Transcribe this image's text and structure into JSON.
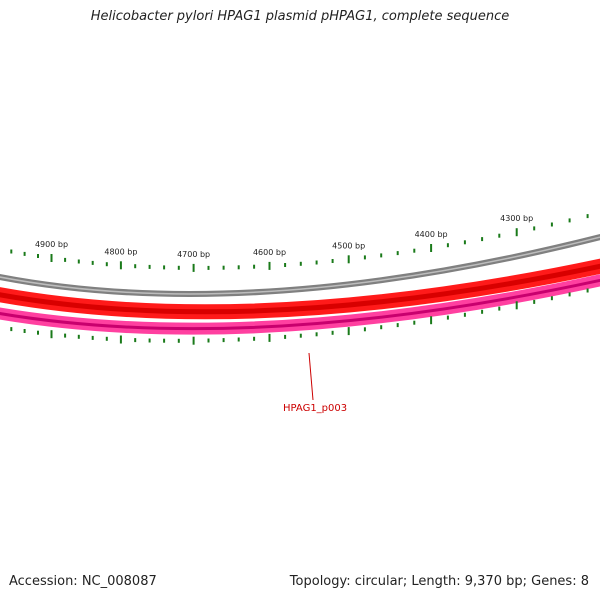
{
  "title": "Helicobacter pylori HPAG1 plasmid pHPAG1, complete sequence",
  "accession": "Accession: NC_008087",
  "summary": "Topology: circular; Length: 9,370 bp; Genes: 8",
  "plasmid": {
    "length_bp": 9370,
    "topology": "circular",
    "genes": 8
  },
  "scale": {
    "major_ticks": [
      {
        "position": 4300,
        "label": "4300 bp"
      },
      {
        "position": 4400,
        "label": "4400 bp"
      },
      {
        "position": 4500,
        "label": "4500 bp"
      },
      {
        "position": 4600,
        "label": "4600 bp"
      },
      {
        "position": 4700,
        "label": "4700 bp"
      },
      {
        "position": 4800,
        "label": "4800 bp"
      },
      {
        "position": 4900,
        "label": "4900 bp"
      }
    ]
  },
  "features": [
    {
      "label": "HPAG1_p003",
      "color": "#cc0000"
    }
  ],
  "colors": {
    "tick": "#1a7a1a",
    "backbone": "#8a8a8a",
    "forward_track": "#ff1a1a",
    "reverse_track": "#ff3c9c",
    "label": "#cc0000"
  }
}
